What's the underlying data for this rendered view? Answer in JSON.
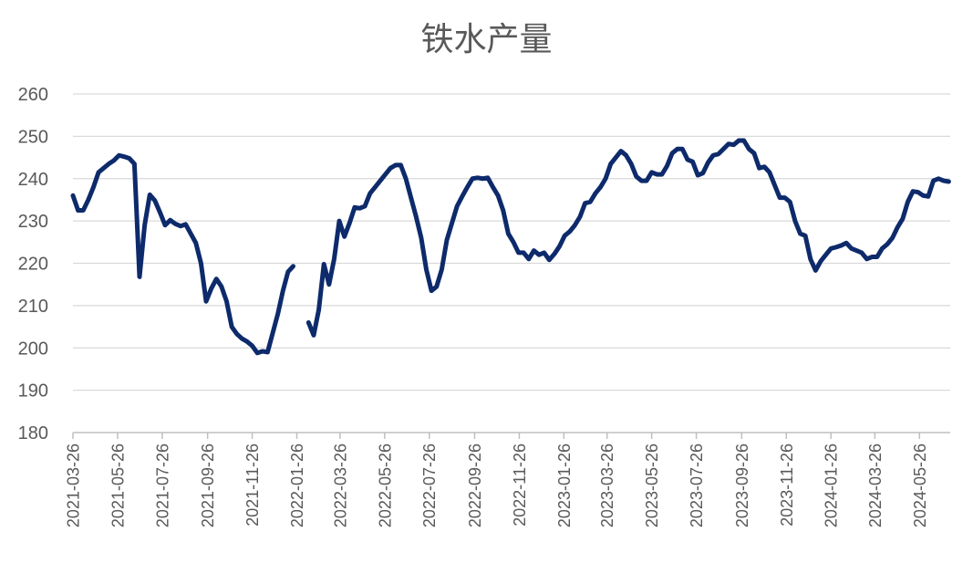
{
  "chart_data": {
    "type": "line",
    "title": "铁水产量",
    "xlabel": "",
    "ylabel": "",
    "ylim": [
      180,
      260
    ],
    "yticks": [
      180,
      190,
      200,
      210,
      220,
      230,
      240,
      250,
      260
    ],
    "xticks": [
      "2021-03-26",
      "2021-05-26",
      "2021-07-26",
      "2021-09-26",
      "2021-11-26",
      "2022-01-26",
      "2022-03-26",
      "2022-05-26",
      "2022-07-26",
      "2022-09-26",
      "2022-11-26",
      "2023-01-26",
      "2023-03-26",
      "2023-05-26",
      "2023-07-26",
      "2023-09-26",
      "2023-11-26",
      "2024-01-26",
      "2024-03-26",
      "2024-05-26"
    ],
    "grid": true,
    "legend": "none",
    "line_color": "#0d2a6b",
    "series": [
      {
        "segments": [
          [
            [
              "2021-03-26",
              236.0
            ],
            [
              "2021-04-02",
              232.5
            ],
            [
              "2021-04-09",
              232.5
            ],
            [
              "2021-04-16",
              235.0
            ],
            [
              "2021-04-23",
              238.0
            ],
            [
              "2021-04-30",
              241.5
            ],
            [
              "2021-05-07",
              242.5
            ],
            [
              "2021-05-14",
              243.5
            ],
            [
              "2021-05-21",
              244.3
            ],
            [
              "2021-05-28",
              245.5
            ],
            [
              "2021-06-04",
              245.2
            ],
            [
              "2021-06-11",
              244.8
            ],
            [
              "2021-06-18",
              243.5
            ],
            [
              "2021-06-25",
              216.8
            ],
            [
              "2021-07-02",
              229.0
            ],
            [
              "2021-07-09",
              236.2
            ],
            [
              "2021-07-16",
              234.8
            ],
            [
              "2021-07-23",
              232.0
            ],
            [
              "2021-07-30",
              229.0
            ],
            [
              "2021-08-06",
              230.2
            ],
            [
              "2021-08-13",
              229.3
            ],
            [
              "2021-08-20",
              228.8
            ],
            [
              "2021-08-27",
              229.2
            ],
            [
              "2021-09-03",
              227.0
            ],
            [
              "2021-09-10",
              224.8
            ],
            [
              "2021-09-17",
              220.0
            ],
            [
              "2021-09-24",
              211.0
            ],
            [
              "2021-10-01",
              214.0
            ],
            [
              "2021-10-08",
              216.3
            ],
            [
              "2021-10-15",
              214.5
            ],
            [
              "2021-10-22",
              211.0
            ],
            [
              "2021-10-29",
              205.0
            ],
            [
              "2021-11-05",
              203.3
            ],
            [
              "2021-11-12",
              202.2
            ],
            [
              "2021-11-19",
              201.5
            ],
            [
              "2021-11-26",
              200.5
            ],
            [
              "2021-12-03",
              198.8
            ],
            [
              "2021-12-10",
              199.2
            ],
            [
              "2021-12-17",
              199.0
            ],
            [
              "2021-12-24",
              203.5
            ],
            [
              "2021-12-31",
              208.0
            ],
            [
              "2022-01-07",
              213.5
            ],
            [
              "2022-01-14",
              218.0
            ],
            [
              "2022-01-21",
              219.3
            ]
          ],
          [
            [
              "2022-02-11",
              206.0
            ],
            [
              "2022-02-18",
              203.0
            ],
            [
              "2022-02-25",
              209.0
            ],
            [
              "2022-03-04",
              219.8
            ],
            [
              "2022-03-11",
              215.0
            ],
            [
              "2022-03-18",
              221.0
            ],
            [
              "2022-03-25",
              230.0
            ],
            [
              "2022-04-01",
              226.3
            ],
            [
              "2022-04-08",
              229.5
            ],
            [
              "2022-04-15",
              233.2
            ],
            [
              "2022-04-22",
              233.0
            ],
            [
              "2022-04-29",
              233.5
            ],
            [
              "2022-05-06",
              236.5
            ],
            [
              "2022-05-13",
              238.0
            ],
            [
              "2022-05-20",
              239.5
            ],
            [
              "2022-05-27",
              241.0
            ],
            [
              "2022-06-03",
              242.5
            ],
            [
              "2022-06-10",
              243.2
            ],
            [
              "2022-06-17",
              243.2
            ],
            [
              "2022-06-24",
              240.0
            ],
            [
              "2022-07-01",
              235.5
            ],
            [
              "2022-07-08",
              231.0
            ],
            [
              "2022-07-15",
              226.0
            ],
            [
              "2022-07-22",
              218.5
            ],
            [
              "2022-07-29",
              213.5
            ],
            [
              "2022-08-05",
              214.5
            ],
            [
              "2022-08-12",
              218.5
            ],
            [
              "2022-08-19",
              225.5
            ],
            [
              "2022-08-26",
              229.5
            ],
            [
              "2022-09-02",
              233.5
            ],
            [
              "2022-09-09",
              235.8
            ],
            [
              "2022-09-16",
              238.0
            ],
            [
              "2022-09-23",
              240.0
            ],
            [
              "2022-09-30",
              240.2
            ],
            [
              "2022-10-07",
              240.0
            ],
            [
              "2022-10-14",
              240.2
            ],
            [
              "2022-10-21",
              238.0
            ],
            [
              "2022-10-28",
              236.0
            ],
            [
              "2022-11-04",
              232.5
            ],
            [
              "2022-11-11",
              227.0
            ],
            [
              "2022-11-18",
              225.0
            ],
            [
              "2022-11-25",
              222.5
            ],
            [
              "2022-12-02",
              222.5
            ],
            [
              "2022-12-09",
              221.0
            ],
            [
              "2022-12-16",
              223.0
            ],
            [
              "2022-12-23",
              222.0
            ],
            [
              "2022-12-30",
              222.5
            ],
            [
              "2023-01-06",
              220.8
            ],
            [
              "2023-01-13",
              222.2
            ],
            [
              "2023-01-20",
              224.0
            ],
            [
              "2023-01-27",
              226.5
            ],
            [
              "2023-02-03",
              227.5
            ],
            [
              "2023-02-10",
              229.0
            ],
            [
              "2023-02-17",
              231.0
            ],
            [
              "2023-02-24",
              234.2
            ],
            [
              "2023-03-03",
              234.5
            ],
            [
              "2023-03-10",
              236.5
            ],
            [
              "2023-03-17",
              238.0
            ],
            [
              "2023-03-24",
              240.0
            ],
            [
              "2023-03-31",
              243.5
            ],
            [
              "2023-04-07",
              245.0
            ],
            [
              "2023-04-14",
              246.5
            ],
            [
              "2023-04-21",
              245.5
            ],
            [
              "2023-04-28",
              243.5
            ],
            [
              "2023-05-05",
              240.5
            ],
            [
              "2023-05-12",
              239.5
            ],
            [
              "2023-05-19",
              239.5
            ],
            [
              "2023-05-26",
              241.5
            ],
            [
              "2023-06-02",
              241.0
            ],
            [
              "2023-06-09",
              241.0
            ],
            [
              "2023-06-16",
              243.0
            ],
            [
              "2023-06-23",
              246.0
            ],
            [
              "2023-06-30",
              247.0
            ],
            [
              "2023-07-07",
              247.0
            ],
            [
              "2023-07-14",
              244.5
            ],
            [
              "2023-07-21",
              244.0
            ],
            [
              "2023-07-28",
              240.8
            ],
            [
              "2023-08-04",
              241.3
            ],
            [
              "2023-08-11",
              243.8
            ],
            [
              "2023-08-18",
              245.5
            ],
            [
              "2023-08-25",
              245.8
            ],
            [
              "2023-09-01",
              247.0
            ],
            [
              "2023-09-08",
              248.2
            ],
            [
              "2023-09-15",
              248.0
            ],
            [
              "2023-09-22",
              249.0
            ],
            [
              "2023-09-29",
              249.0
            ],
            [
              "2023-10-06",
              247.0
            ],
            [
              "2023-10-13",
              246.0
            ],
            [
              "2023-10-20",
              242.5
            ],
            [
              "2023-10-27",
              242.8
            ],
            [
              "2023-11-03",
              241.5
            ],
            [
              "2023-11-10",
              238.5
            ],
            [
              "2023-11-17",
              235.5
            ],
            [
              "2023-11-24",
              235.5
            ],
            [
              "2023-12-01",
              234.5
            ],
            [
              "2023-12-08",
              230.0
            ],
            [
              "2023-12-15",
              227.0
            ],
            [
              "2023-12-22",
              226.5
            ],
            [
              "2023-12-29",
              221.0
            ],
            [
              "2024-01-05",
              218.3
            ],
            [
              "2024-01-12",
              220.5
            ],
            [
              "2024-01-19",
              222.0
            ],
            [
              "2024-01-26",
              223.5
            ],
            [
              "2024-02-02",
              223.8
            ],
            [
              "2024-02-09",
              224.2
            ],
            [
              "2024-02-16",
              224.8
            ],
            [
              "2024-02-23",
              223.5
            ],
            [
              "2024-03-01",
              223.0
            ],
            [
              "2024-03-08",
              222.5
            ],
            [
              "2024-03-15",
              221.0
            ],
            [
              "2024-03-22",
              221.5
            ],
            [
              "2024-03-29",
              221.5
            ],
            [
              "2024-04-05",
              223.5
            ],
            [
              "2024-04-12",
              224.5
            ],
            [
              "2024-04-19",
              226.0
            ],
            [
              "2024-04-26",
              228.5
            ],
            [
              "2024-05-03",
              230.5
            ],
            [
              "2024-05-10",
              234.5
            ],
            [
              "2024-05-17",
              237.0
            ],
            [
              "2024-05-24",
              236.8
            ],
            [
              "2024-05-31",
              236.0
            ],
            [
              "2024-06-07",
              235.8
            ],
            [
              "2024-06-14",
              239.5
            ],
            [
              "2024-06-21",
              240.0
            ],
            [
              "2024-06-28",
              239.5
            ],
            [
              "2024-07-05",
              239.3
            ]
          ]
        ]
      }
    ]
  }
}
